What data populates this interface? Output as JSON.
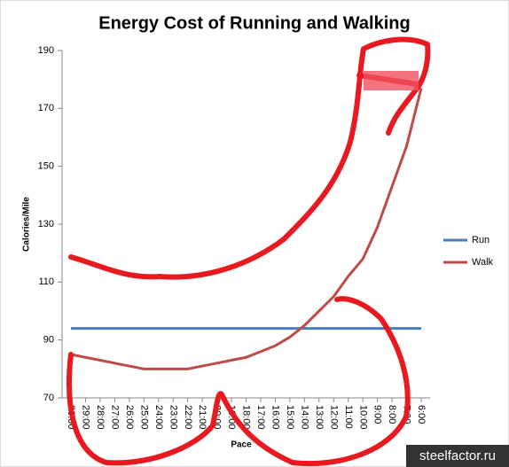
{
  "chart_data": {
    "type": "line",
    "title": "Energy Cost of Running and Walking",
    "y_label": "Calories/Mile",
    "x_label": "Pace",
    "categories": [
      "30:00",
      "29:00",
      "28:00",
      "27:00",
      "26:00",
      "25:00",
      "24:00",
      "23:00",
      "22:00",
      "21:00",
      "20:00",
      "19:00",
      "18:00",
      "17:00",
      "16:00",
      "15:00",
      "14:00",
      "13:00",
      "12:00",
      "11:00",
      "10:00",
      "9:00",
      "8:00",
      "7:00",
      "6:00"
    ],
    "series": [
      {
        "name": "Run",
        "color": "#4a7ebb",
        "values": [
          94,
          94,
          94,
          94,
          94,
          94,
          94,
          94,
          94,
          94,
          94,
          94,
          94,
          94,
          94,
          94,
          94,
          94,
          94,
          94,
          94,
          94,
          94,
          94,
          94
        ]
      },
      {
        "name": "Walk",
        "color": "#be4b48",
        "values": [
          85,
          84,
          83,
          82,
          81,
          80,
          80,
          80,
          80,
          81,
          82,
          83,
          84,
          86,
          88,
          91,
          95,
          100,
          105,
          112,
          118,
          129,
          143,
          157,
          177
        ]
      }
    ],
    "ylim": [
      70,
      190
    ],
    "yticks": [
      70,
      90,
      110,
      130,
      150,
      170,
      190
    ],
    "legend": "right",
    "watermark": "steelfactor.ru"
  }
}
